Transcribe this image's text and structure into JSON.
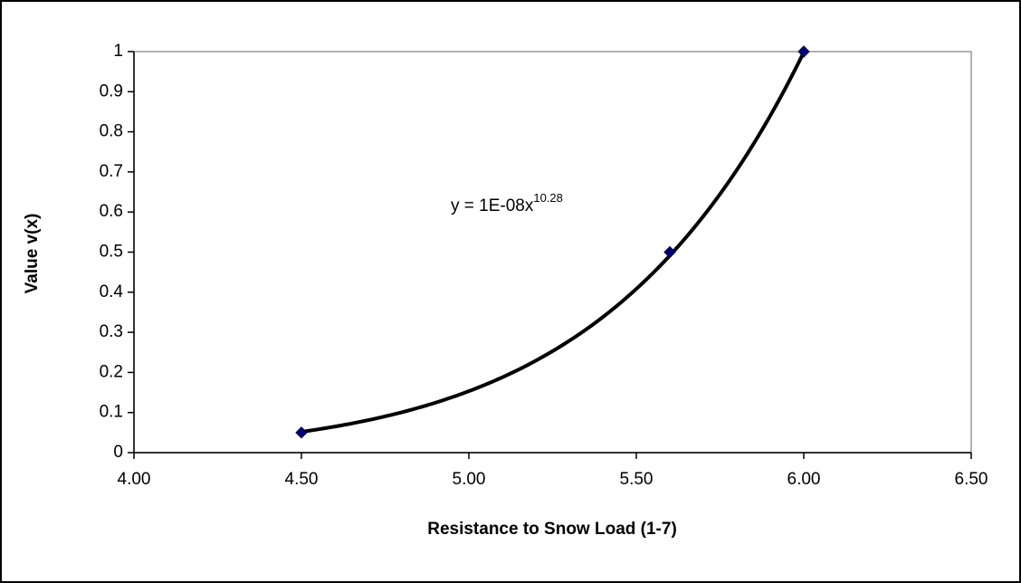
{
  "chart_data": {
    "type": "scatter",
    "x_label": "Resistance to Snow Load (1-7)",
    "y_label": "Value v(x)",
    "x": [
      4.5,
      5.6,
      6.0
    ],
    "values": [
      0.05,
      0.5,
      1.0
    ],
    "color": "#000080",
    "xlim": [
      4.0,
      6.5
    ],
    "xticks": [
      {
        "value": 4.0,
        "label": "4.00"
      },
      {
        "value": 4.5,
        "label": "4.50"
      },
      {
        "value": 5.0,
        "label": "5.00"
      },
      {
        "value": 5.5,
        "label": "5.50"
      },
      {
        "value": 6.0,
        "label": "6.00"
      },
      {
        "value": 6.5,
        "label": "6.50"
      }
    ],
    "ylim": [
      0,
      1
    ],
    "yticks": [
      0,
      0.1,
      0.2,
      0.3,
      0.4,
      0.5,
      0.6,
      0.7,
      0.8,
      0.9,
      1
    ],
    "grid": false,
    "trendline": {
      "type": "power",
      "coefficient": 1e-08,
      "exponent": 10.28,
      "color": "#000000"
    },
    "annotation": {
      "text": "y = 1E-08x",
      "superscript": "10.28"
    }
  }
}
